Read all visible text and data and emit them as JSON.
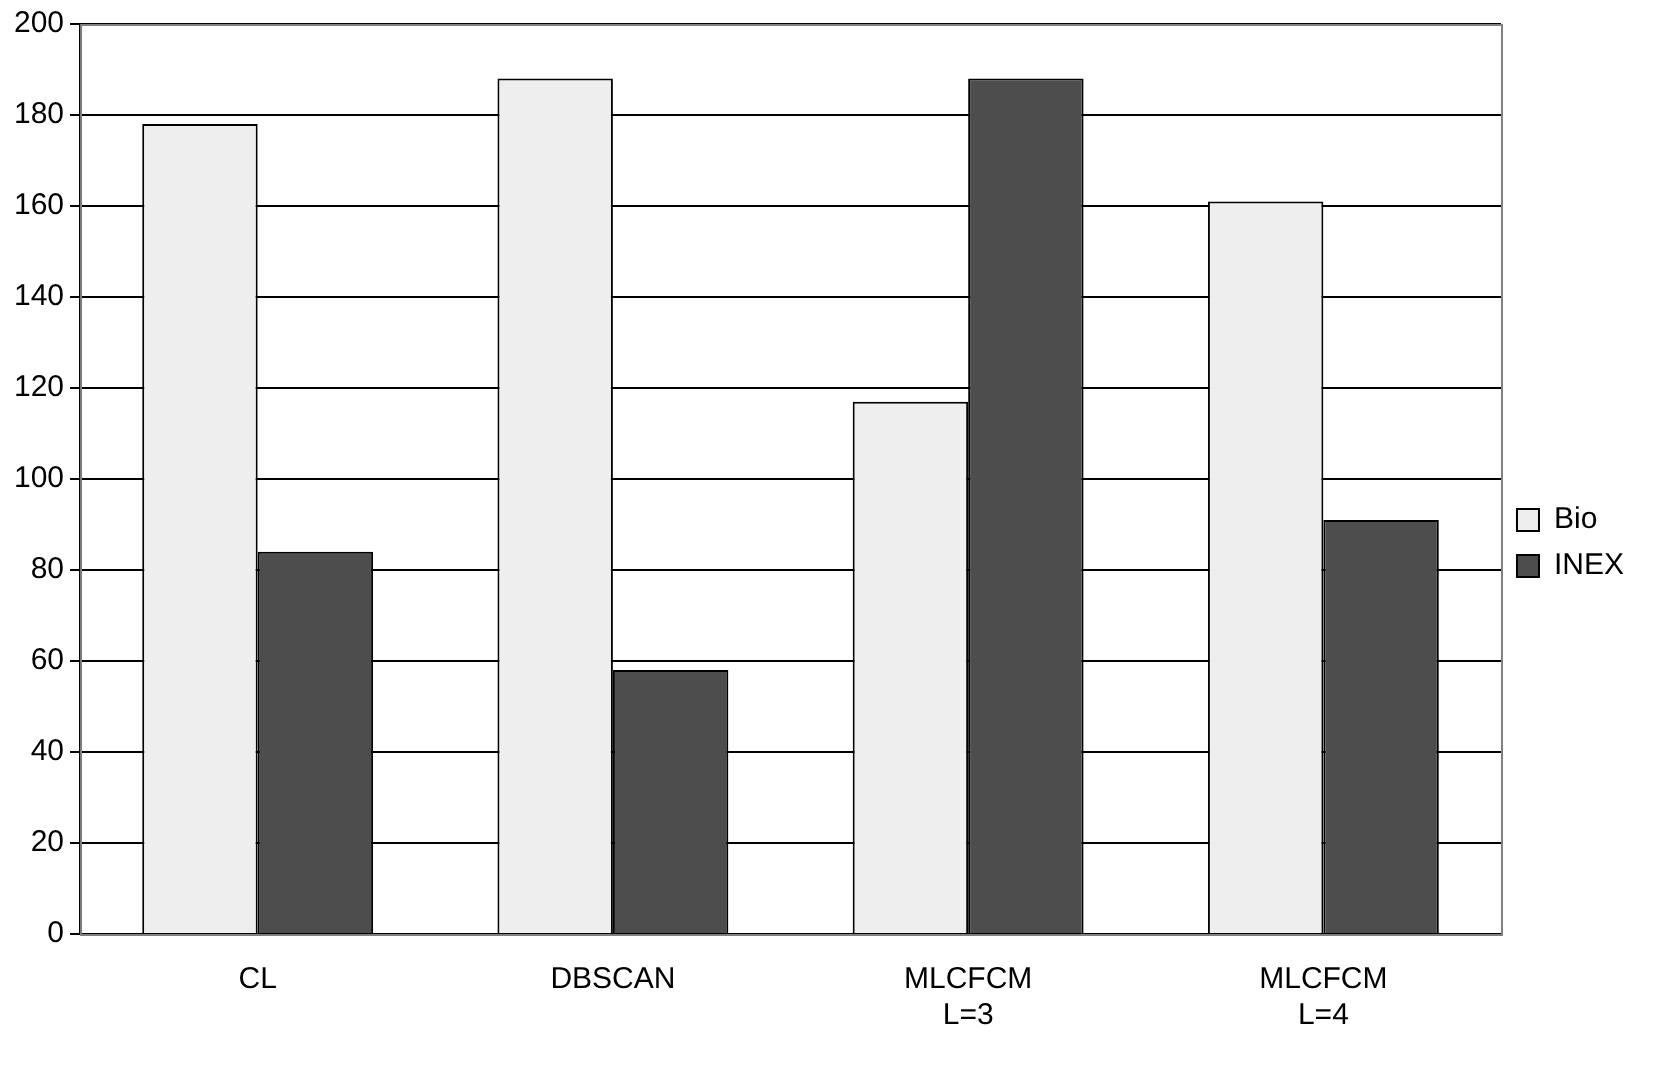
{
  "chart_data": {
    "type": "bar",
    "categories": [
      "CL",
      "DBSCAN",
      "MLCFCM\nL=3",
      "MLCFCM\nL=4"
    ],
    "series": [
      {
        "name": "Bio",
        "color": "#eeeeee",
        "values": [
          178,
          188,
          117,
          161
        ]
      },
      {
        "name": "INEX",
        "color": "#4d4d4d",
        "values": [
          84,
          58,
          188,
          91
        ]
      }
    ],
    "ylim": [
      0,
      200
    ],
    "yticks": [
      0,
      20,
      40,
      60,
      80,
      100,
      120,
      140,
      160,
      180,
      200
    ],
    "grid": "y",
    "legend": "right"
  }
}
